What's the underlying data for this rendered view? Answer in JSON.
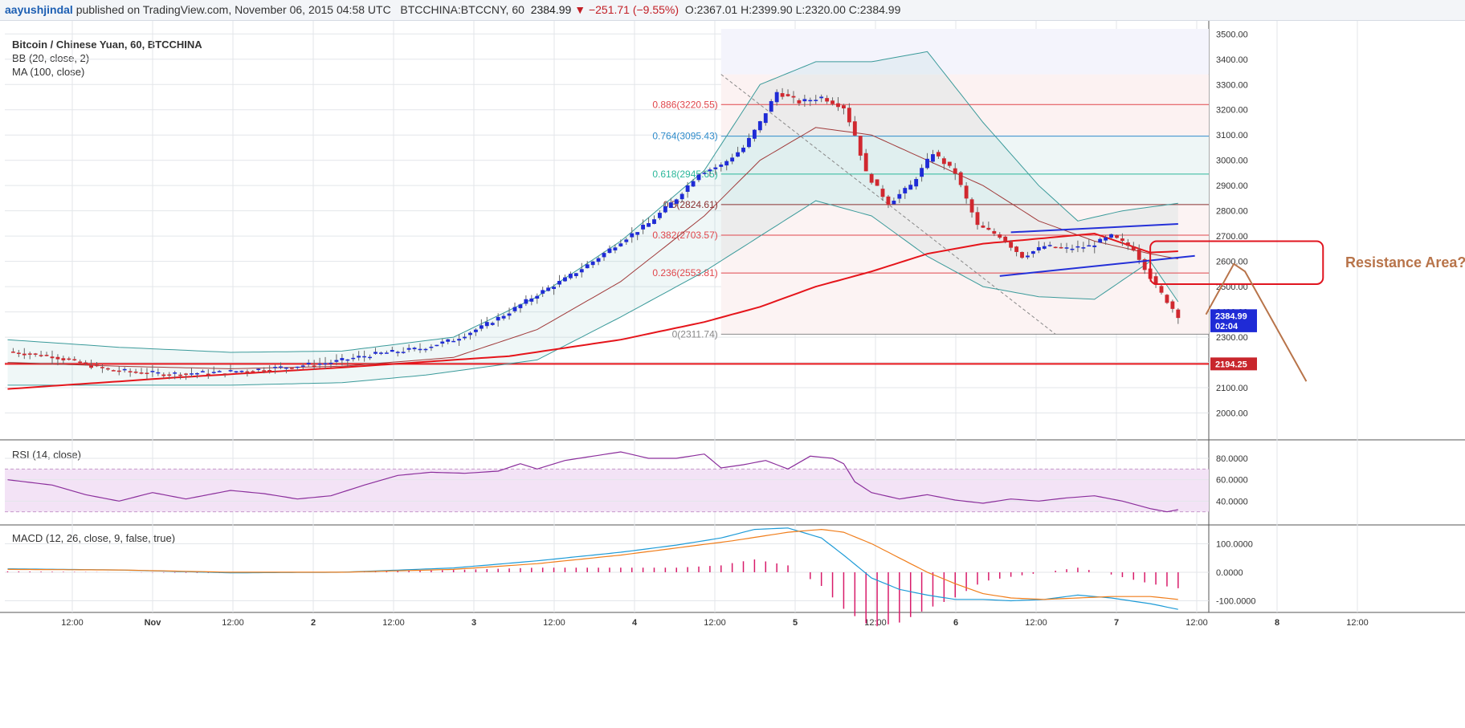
{
  "header": {
    "author": "aayushjindal",
    "published": "published on TradingView.com, November 06, 2015 04:58 UTC",
    "symbol": "BTCCHINA:BTCCNY, 60",
    "last": "2384.99",
    "change": "▼ −251.71 (−9.55%)",
    "ohlc": "O:2367.01 H:2399.90 L:2320.00 C:2384.99"
  },
  "colors": {
    "up": "#1f2bd6",
    "down": "#d0282f",
    "ma": "#e5151b",
    "bb_basis": "#a03a3a",
    "bb_band": "#3a9a9a",
    "rsi": "#8b2e9c",
    "macd": "#1e9bd7",
    "signal": "#f07d1a",
    "hist": "#d81b6a",
    "annotation": "#b8744a"
  },
  "chart_data": [
    {
      "type": "candlestick",
      "title": "Bitcoin / Chinese Yuan, 60, BTCCHINA",
      "indicators": [
        "BB (20, close, 2)",
        "MA (100, close)"
      ],
      "ylim": [
        1900,
        3520
      ],
      "y_ticks": [
        "3500.00",
        "3400.00",
        "3300.00",
        "3200.00",
        "3100.00",
        "3000.00",
        "2900.00",
        "2800.00",
        "2700.00",
        "2600.00",
        "2500.00",
        "2400.00",
        "2300.00",
        "2200.00",
        "2100.00",
        "2000.00"
      ],
      "x_tick_labels": [
        "12:00",
        "Nov",
        "12:00",
        "2",
        "12:00",
        "3",
        "12:00",
        "4",
        "12:00",
        "5",
        "12:00",
        "6",
        "12:00",
        "7",
        "12:00",
        "8",
        "12:00"
      ],
      "series_points": {
        "close_anchors": [
          [
            0,
            2243
          ],
          [
            8,
            2225
          ],
          [
            18,
            2170
          ],
          [
            28,
            2155
          ],
          [
            38,
            2160
          ],
          [
            48,
            2178
          ],
          [
            58,
            2200
          ],
          [
            65,
            2230
          ],
          [
            74,
            2255
          ],
          [
            80,
            2290
          ],
          [
            85,
            2340
          ],
          [
            90,
            2400
          ],
          [
            95,
            2470
          ],
          [
            100,
            2530
          ],
          [
            105,
            2600
          ],
          [
            110,
            2680
          ],
          [
            115,
            2750
          ],
          [
            120,
            2850
          ],
          [
            124,
            2950
          ],
          [
            128,
            2980
          ],
          [
            132,
            3050
          ],
          [
            135,
            3150
          ],
          [
            138,
            3270
          ],
          [
            142,
            3230
          ],
          [
            146,
            3250
          ],
          [
            150,
            3210
          ],
          [
            152,
            3100
          ],
          [
            154,
            2950
          ],
          [
            158,
            2830
          ],
          [
            162,
            2900
          ],
          [
            166,
            3030
          ],
          [
            170,
            2950
          ],
          [
            174,
            2740
          ],
          [
            178,
            2700
          ],
          [
            182,
            2620
          ],
          [
            186,
            2660
          ],
          [
            190,
            2650
          ],
          [
            194,
            2660
          ],
          [
            198,
            2700
          ],
          [
            202,
            2650
          ],
          [
            206,
            2500
          ],
          [
            210,
            2385
          ]
        ],
        "ma100_anchors": [
          [
            0,
            2095
          ],
          [
            30,
            2140
          ],
          [
            60,
            2180
          ],
          [
            90,
            2225
          ],
          [
            110,
            2290
          ],
          [
            125,
            2360
          ],
          [
            135,
            2420
          ],
          [
            145,
            2500
          ],
          [
            155,
            2560
          ],
          [
            165,
            2630
          ],
          [
            175,
            2670
          ],
          [
            185,
            2690
          ],
          [
            195,
            2710
          ],
          [
            205,
            2635
          ],
          [
            210,
            2640
          ]
        ],
        "bb_basis_anchors": [
          [
            0,
            2200
          ],
          [
            20,
            2185
          ],
          [
            40,
            2175
          ],
          [
            60,
            2185
          ],
          [
            80,
            2220
          ],
          [
            95,
            2330
          ],
          [
            110,
            2520
          ],
          [
            125,
            2780
          ],
          [
            135,
            3000
          ],
          [
            145,
            3130
          ],
          [
            155,
            3100
          ],
          [
            165,
            3000
          ],
          [
            175,
            2900
          ],
          [
            185,
            2760
          ],
          [
            195,
            2680
          ],
          [
            205,
            2630
          ],
          [
            210,
            2610
          ]
        ],
        "bb_upper_anchors": [
          [
            0,
            2290
          ],
          [
            20,
            2260
          ],
          [
            40,
            2240
          ],
          [
            60,
            2245
          ],
          [
            80,
            2300
          ],
          [
            95,
            2460
          ],
          [
            110,
            2680
          ],
          [
            125,
            2960
          ],
          [
            135,
            3300
          ],
          [
            145,
            3390
          ],
          [
            155,
            3390
          ],
          [
            165,
            3430
          ],
          [
            175,
            3150
          ],
          [
            185,
            2900
          ],
          [
            192,
            2760
          ],
          [
            200,
            2800
          ],
          [
            210,
            2830
          ]
        ],
        "bb_lower_anchors": [
          [
            0,
            2110
          ],
          [
            20,
            2110
          ],
          [
            40,
            2110
          ],
          [
            60,
            2120
          ],
          [
            75,
            2150
          ],
          [
            85,
            2180
          ],
          [
            95,
            2210
          ],
          [
            110,
            2380
          ],
          [
            125,
            2560
          ],
          [
            135,
            2700
          ],
          [
            145,
            2840
          ],
          [
            155,
            2780
          ],
          [
            165,
            2620
          ],
          [
            175,
            2500
          ],
          [
            185,
            2460
          ],
          [
            195,
            2450
          ],
          [
            205,
            2600
          ],
          [
            210,
            2440
          ]
        ]
      },
      "fibonacci": [
        {
          "label": "0.886(3220.55)",
          "value": 3220.55,
          "color": "#e0464b"
        },
        {
          "label": "0.764(3095.43)",
          "value": 3095.43,
          "color": "#2f8ccb"
        },
        {
          "label": "0.618(2945.65)",
          "value": 2945.65,
          "color": "#2bb79a"
        },
        {
          "label": "0.5(2824.61)",
          "value": 2824.61,
          "color": "#8a3030"
        },
        {
          "label": "0.382(2703.57)",
          "value": 2703.57,
          "color": "#e0464b"
        },
        {
          "label": "0.236(2553.81)",
          "value": 2553.81,
          "color": "#e0464b"
        },
        {
          "label": "0(2311.74)",
          "value": 2311.74,
          "color": "#888888"
        }
      ],
      "support_line": 2194.25,
      "price_tags": [
        {
          "label": "2384.99",
          "value": 2384.99,
          "color": "#1f2bd6"
        },
        {
          "label": "02:04",
          "value": 2345,
          "color": "#1f2bd6"
        },
        {
          "label": "2194.25",
          "value": 2194.25,
          "color": "#c8262c"
        }
      ],
      "annotation": {
        "text": "Resistance Area?",
        "y_from": 2510,
        "y_to": 2680
      }
    },
    {
      "type": "line",
      "title": "RSI (14, close)",
      "ylim": [
        20,
        95
      ],
      "y_ticks": [
        "80.0000",
        "60.0000",
        "40.0000"
      ],
      "band": [
        30,
        70
      ],
      "anchors": [
        [
          0,
          60
        ],
        [
          8,
          55
        ],
        [
          14,
          46
        ],
        [
          20,
          40
        ],
        [
          26,
          48
        ],
        [
          32,
          42
        ],
        [
          40,
          50
        ],
        [
          46,
          47
        ],
        [
          52,
          42
        ],
        [
          58,
          45
        ],
        [
          64,
          55
        ],
        [
          70,
          64
        ],
        [
          76,
          67
        ],
        [
          82,
          66
        ],
        [
          88,
          68
        ],
        [
          92,
          75
        ],
        [
          95,
          70
        ],
        [
          100,
          78
        ],
        [
          105,
          82
        ],
        [
          110,
          86
        ],
        [
          115,
          80
        ],
        [
          120,
          80
        ],
        [
          125,
          84
        ],
        [
          128,
          71
        ],
        [
          132,
          74
        ],
        [
          136,
          78
        ],
        [
          140,
          70
        ],
        [
          144,
          82
        ],
        [
          148,
          80
        ],
        [
          150,
          75
        ],
        [
          152,
          58
        ],
        [
          155,
          48
        ],
        [
          160,
          42
        ],
        [
          165,
          46
        ],
        [
          170,
          41
        ],
        [
          175,
          38
        ],
        [
          180,
          42
        ],
        [
          185,
          40
        ],
        [
          190,
          43
        ],
        [
          195,
          45
        ],
        [
          200,
          40
        ],
        [
          205,
          33
        ],
        [
          208,
          30
        ],
        [
          210,
          32
        ]
      ]
    },
    {
      "type": "line",
      "title": "MACD (12, 26, close, 9, false, true)",
      "ylim": [
        -135,
        160
      ],
      "y_ticks": [
        "100.0000",
        "0.0000",
        "-100.0000"
      ],
      "series": [
        {
          "name": "MACD",
          "anchors": [
            [
              0,
              12
            ],
            [
              20,
              8
            ],
            [
              40,
              -2
            ],
            [
              60,
              0
            ],
            [
              80,
              15
            ],
            [
              95,
              40
            ],
            [
              110,
              70
            ],
            [
              120,
              95
            ],
            [
              128,
              120
            ],
            [
              134,
              150
            ],
            [
              140,
              155
            ],
            [
              146,
              120
            ],
            [
              150,
              60
            ],
            [
              155,
              -20
            ],
            [
              160,
              -60
            ],
            [
              165,
              -80
            ],
            [
              170,
              -95
            ],
            [
              175,
              -95
            ],
            [
              180,
              -100
            ],
            [
              186,
              -95
            ],
            [
              192,
              -80
            ],
            [
              198,
              -90
            ],
            [
              205,
              -110
            ],
            [
              210,
              -130
            ]
          ]
        },
        {
          "name": "Signal",
          "anchors": [
            [
              0,
              10
            ],
            [
              20,
              8
            ],
            [
              40,
              0
            ],
            [
              60,
              0
            ],
            [
              80,
              10
            ],
            [
              95,
              30
            ],
            [
              110,
              60
            ],
            [
              120,
              85
            ],
            [
              130,
              110
            ],
            [
              140,
              140
            ],
            [
              146,
              150
            ],
            [
              150,
              140
            ],
            [
              155,
              100
            ],
            [
              160,
              50
            ],
            [
              165,
              0
            ],
            [
              170,
              -40
            ],
            [
              175,
              -75
            ],
            [
              180,
              -90
            ],
            [
              186,
              -95
            ],
            [
              192,
              -90
            ],
            [
              198,
              -85
            ],
            [
              205,
              -85
            ],
            [
              210,
              -95
            ]
          ]
        }
      ]
    }
  ]
}
